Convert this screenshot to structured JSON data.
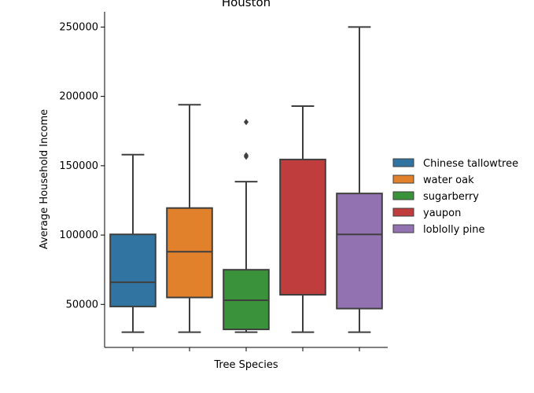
{
  "chart_data": {
    "type": "box",
    "title": "Houston",
    "xlabel": "Tree Species",
    "ylabel": "Average Household Income",
    "ylim": [
      19000,
      261000
    ],
    "yticks": [
      50000,
      100000,
      150000,
      200000,
      250000
    ],
    "ytick_labels": [
      "50000",
      "100000",
      "150000",
      "200000",
      "250000"
    ],
    "grid": false,
    "legend_position": "right",
    "categories": [
      "Chinese tallowtree",
      "water oak",
      "sugarberry",
      "yaupon",
      "loblolly pine"
    ],
    "series": [
      {
        "name": "Chinese tallowtree",
        "color": "#3274a1",
        "whisker_low": 30000,
        "q1": 48500,
        "median": 66000,
        "q3": 100500,
        "whisker_high": 158000,
        "outliers": []
      },
      {
        "name": "water oak",
        "color": "#e1812c",
        "whisker_low": 30000,
        "q1": 55000,
        "median": 88000,
        "q3": 119500,
        "whisker_high": 194000,
        "outliers": []
      },
      {
        "name": "sugarberry",
        "color": "#3a923a",
        "whisker_low": 30000,
        "q1": 32000,
        "median": 53000,
        "q3": 75000,
        "whisker_high": 138500,
        "outliers": [
          156500,
          157500,
          181500
        ]
      },
      {
        "name": "yaupon",
        "color": "#c03d3e",
        "whisker_low": 30000,
        "q1": 57000,
        "median": 57000,
        "q3": 154500,
        "whisker_high": 193000,
        "outliers": []
      },
      {
        "name": "loblolly pine",
        "color": "#9372b2",
        "whisker_low": 30000,
        "q1": 47000,
        "median": 100500,
        "q3": 130000,
        "whisker_high": 250000,
        "outliers": []
      }
    ]
  }
}
